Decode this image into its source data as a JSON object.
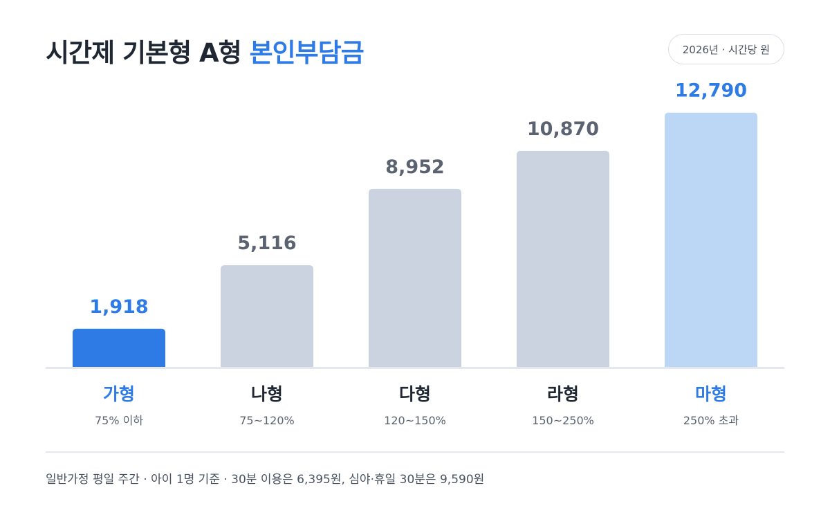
{
  "header": {
    "title_main": "시간제 기본형 A형",
    "title_accent": "본인부담금",
    "badge": "2026년 · 시간당 원"
  },
  "footnote": "일반가정 평일 주간 · 아이 1명 기준 · 30분 이용은 6,395원, 심야·휴일 30분은 9,590원",
  "colors": {
    "highlight": "#2f7be5",
    "bar_default": "#cad3df",
    "bar_last": "#bcd6f6",
    "label_dark": "#1f2733",
    "value_gray": "#5b6270",
    "range_gray": "#5b6270",
    "axis": "#e4e8ee"
  },
  "chart_data": {
    "type": "bar",
    "title": "시간제 기본형 A형 본인부담금",
    "unit": "2026년 · 시간당 원",
    "categories": [
      "가형",
      "나형",
      "다형",
      "라형",
      "마형"
    ],
    "category_ranges": [
      "75% 이하",
      "75~120%",
      "120~150%",
      "150~250%",
      "250% 초과"
    ],
    "values": [
      1918,
      5116,
      8952,
      10870,
      12790
    ],
    "value_labels": [
      "1,918",
      "5,116",
      "8,952",
      "10,870",
      "12,790"
    ],
    "ylim": [
      0,
      14800
    ],
    "grid": false,
    "highlight": {
      "index_primary": 0,
      "index_secondary": 4
    }
  }
}
